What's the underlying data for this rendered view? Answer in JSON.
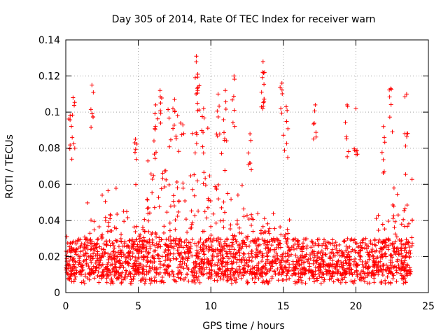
{
  "chart_data": {
    "type": "scatter",
    "title": "Day 305 of 2014, Rate Of TEC Index for receiver warn",
    "xlabel": "GPS time / hours",
    "ylabel": "ROTI / TECUs",
    "xlim": [
      0,
      25
    ],
    "ylim": [
      0,
      0.14
    ],
    "x_ticks": [
      0,
      5,
      10,
      15,
      20,
      25
    ],
    "x_tick_labels": [
      "0",
      "5",
      "10",
      "15",
      "20",
      "25"
    ],
    "y_ticks": [
      0,
      0.02,
      0.04,
      0.06,
      0.08,
      0.1,
      0.12,
      0.14
    ],
    "y_tick_labels": [
      "0",
      "0.02",
      "0.04",
      "0.06",
      "0.08",
      "0.1",
      "0.12",
      "0.14"
    ],
    "grid": true,
    "marker": "+",
    "marker_color": "#ff0000",
    "x_range_of_data": [
      0.0,
      23.9
    ],
    "baseline_roti_typical": [
      0.005,
      0.03
    ],
    "notable_peaks": [
      {
        "x": 0.3,
        "y": 0.098
      },
      {
        "x": 0.5,
        "y": 0.108
      },
      {
        "x": 1.8,
        "y": 0.115
      },
      {
        "x": 4.8,
        "y": 0.085
      },
      {
        "x": 6.2,
        "y": 0.104
      },
      {
        "x": 6.5,
        "y": 0.112
      },
      {
        "x": 7.5,
        "y": 0.107
      },
      {
        "x": 9.0,
        "y": 0.131
      },
      {
        "x": 9.1,
        "y": 0.121
      },
      {
        "x": 9.5,
        "y": 0.102
      },
      {
        "x": 10.5,
        "y": 0.11
      },
      {
        "x": 11.0,
        "y": 0.112
      },
      {
        "x": 11.6,
        "y": 0.12
      },
      {
        "x": 12.7,
        "y": 0.088
      },
      {
        "x": 13.6,
        "y": 0.128
      },
      {
        "x": 13.7,
        "y": 0.122
      },
      {
        "x": 14.9,
        "y": 0.116
      },
      {
        "x": 15.2,
        "y": 0.103
      },
      {
        "x": 17.2,
        "y": 0.104
      },
      {
        "x": 19.4,
        "y": 0.104
      },
      {
        "x": 20.0,
        "y": 0.102
      },
      {
        "x": 21.9,
        "y": 0.092
      },
      {
        "x": 22.4,
        "y": 0.113
      },
      {
        "x": 23.5,
        "y": 0.11
      }
    ]
  }
}
